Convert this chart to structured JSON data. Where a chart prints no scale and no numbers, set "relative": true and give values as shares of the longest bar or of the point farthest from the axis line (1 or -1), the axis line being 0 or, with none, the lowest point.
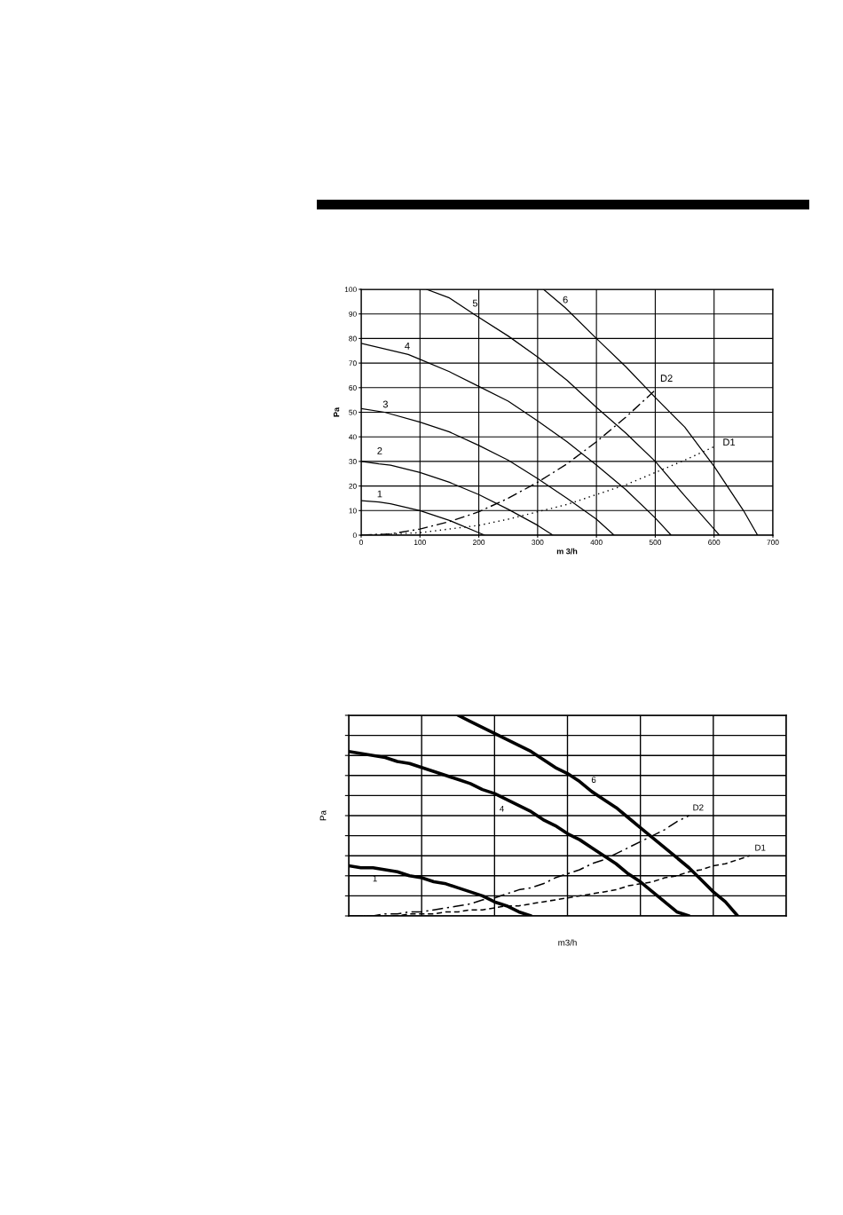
{
  "chart_data": [
    {
      "type": "line",
      "xlabel": "m 3/h",
      "ylabel": "Pa",
      "xlim": [
        0,
        700
      ],
      "ylim": [
        0,
        100
      ],
      "xticks": [
        0,
        100,
        200,
        300,
        400,
        500,
        600,
        700
      ],
      "yticks": [
        0,
        10,
        20,
        30,
        40,
        50,
        60,
        70,
        80,
        90,
        100
      ],
      "grid": true,
      "series": [
        {
          "name": "1",
          "color": "#000000",
          "line_style": "solid",
          "x": [
            0,
            30,
            50,
            100,
            150,
            200,
            210
          ],
          "values": [
            14,
            13.5,
            12.8,
            10,
            6,
            1,
            0
          ]
        },
        {
          "name": "2",
          "color": "#000000",
          "line_style": "solid",
          "x": [
            0,
            30,
            50,
            100,
            150,
            200,
            250,
            300,
            326
          ],
          "values": [
            30,
            29,
            28.5,
            25.5,
            21.5,
            16.5,
            10.5,
            4,
            0
          ]
        },
        {
          "name": "3",
          "color": "#000000",
          "line_style": "solid",
          "x": [
            0,
            40,
            100,
            150,
            200,
            250,
            300,
            350,
            400,
            430
          ],
          "values": [
            51.5,
            50,
            46,
            42,
            36.5,
            30.5,
            23,
            15,
            6.5,
            0
          ]
        },
        {
          "name": "4",
          "color": "#000000",
          "line_style": "solid",
          "x": [
            0,
            80,
            100,
            150,
            200,
            250,
            300,
            350,
            400,
            450,
            500,
            527
          ],
          "values": [
            78,
            73.5,
            71.5,
            66.5,
            60.5,
            54.5,
            46.5,
            38,
            28.5,
            18.5,
            7,
            0
          ]
        },
        {
          "name": "5",
          "color": "#000000",
          "line_style": "solid",
          "x": [
            111,
            150,
            194,
            250,
            300,
            350,
            400,
            450,
            500,
            550,
            600,
            609
          ],
          "values": [
            100,
            96.5,
            89.5,
            81,
            72.5,
            63,
            52,
            41.5,
            30,
            16,
            2.5,
            0
          ]
        },
        {
          "name": "6",
          "color": "#000000",
          "line_style": "solid",
          "x": [
            310,
            347,
            400,
            450,
            500,
            550,
            600,
            650,
            674
          ],
          "values": [
            100,
            92.5,
            80,
            68.5,
            56,
            44,
            28,
            10,
            0
          ]
        },
        {
          "name": "D1",
          "color": "#000000",
          "line_style": "dotted",
          "x": [
            0,
            100,
            150,
            200,
            250,
            300,
            350,
            400,
            450,
            500,
            550,
            600
          ],
          "values": [
            0,
            1,
            2.5,
            4,
            6.5,
            9.5,
            12.5,
            16.5,
            20.5,
            25.5,
            30.5,
            36
          ]
        },
        {
          "name": "D2",
          "color": "#000000",
          "line_style": "dashdot",
          "x": [
            0,
            50,
            100,
            150,
            200,
            250,
            300,
            350,
            400,
            450,
            500
          ],
          "values": [
            0,
            0.5,
            2.5,
            5.5,
            9.5,
            15,
            21.5,
            29,
            38,
            48,
            59
          ]
        }
      ]
    },
    {
      "type": "line",
      "relative": true,
      "xlabel": "m3/h",
      "ylabel": "Pa",
      "grid": true,
      "tick_labels": false,
      "categories": [
        null,
        null,
        null,
        null,
        null,
        null,
        null,
        null,
        null,
        null,
        null,
        null,
        null,
        null,
        null,
        null,
        null,
        null,
        null,
        null,
        null,
        null,
        null,
        null,
        null,
        null,
        null,
        null,
        null,
        null,
        null,
        null,
        null,
        null,
        null,
        null,
        null
      ],
      "series": [
        {
          "name": "1",
          "color": "#000000",
          "line_style": "solid",
          "values": [
            0.25,
            0.24,
            0.24,
            0.23,
            0.22,
            0.2,
            0.19,
            0.17,
            0.16,
            0.14,
            0.12,
            0.1,
            0.07,
            0.05,
            0.02,
            0,
            null,
            null,
            null,
            null,
            null,
            null,
            null,
            null,
            null,
            null,
            null,
            null,
            null,
            null,
            null,
            null,
            null,
            null,
            null,
            null,
            null
          ]
        },
        {
          "name": "4",
          "color": "#000000",
          "line_style": "solid",
          "values": [
            0.82,
            0.81,
            0.8,
            0.79,
            0.77,
            0.76,
            0.74,
            0.72,
            0.7,
            0.68,
            0.66,
            0.63,
            0.61,
            0.58,
            0.55,
            0.52,
            0.48,
            0.45,
            0.41,
            0.38,
            0.34,
            0.3,
            0.26,
            0.21,
            0.17,
            0.12,
            0.07,
            0.02,
            0,
            null,
            null,
            null,
            null,
            null,
            null,
            null,
            null
          ]
        },
        {
          "name": "6",
          "color": "#000000",
          "line_style": "solid",
          "values": [
            null,
            null,
            null,
            null,
            null,
            null,
            null,
            null,
            null,
            1,
            0.97,
            0.94,
            0.91,
            0.88,
            0.85,
            0.82,
            0.78,
            0.74,
            0.71,
            0.67,
            0.62,
            0.58,
            0.54,
            0.49,
            0.44,
            0.39,
            0.34,
            0.29,
            0.24,
            0.18,
            0.12,
            0.07,
            0,
            null,
            null,
            null,
            null
          ]
        },
        {
          "name": "D1",
          "color": "#000000",
          "line_style": "dashed",
          "values": [
            0,
            0,
            0,
            0,
            0,
            0.01,
            0.01,
            0.01,
            0.02,
            0.02,
            0.03,
            0.03,
            0.04,
            0.05,
            0.05,
            0.06,
            0.07,
            0.08,
            0.09,
            0.1,
            0.11,
            0.12,
            0.13,
            0.15,
            0.16,
            0.17,
            0.19,
            0.2,
            0.22,
            0.23,
            0.25,
            0.26,
            0.28,
            0.3,
            null,
            null,
            null
          ]
        },
        {
          "name": "D2",
          "color": "#000000",
          "line_style": "dashdot",
          "values": [
            0,
            0,
            0,
            0.01,
            0.01,
            0.02,
            0.02,
            0.03,
            0.04,
            0.05,
            0.06,
            0.08,
            0.09,
            0.11,
            0.13,
            0.14,
            0.16,
            0.19,
            0.21,
            0.23,
            0.26,
            0.28,
            0.31,
            0.34,
            0.37,
            0.4,
            0.43,
            0.47,
            0.5,
            null,
            null,
            null,
            null,
            null,
            null,
            null,
            null
          ]
        }
      ]
    }
  ]
}
